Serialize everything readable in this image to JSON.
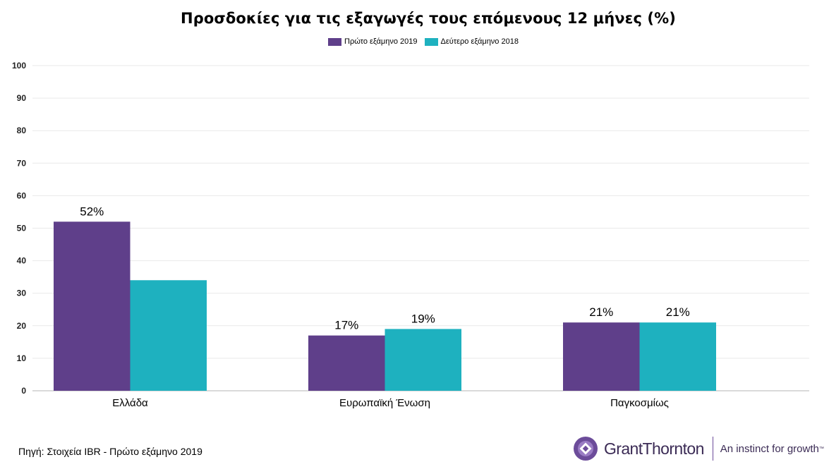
{
  "chart_data": {
    "type": "bar",
    "title": "Προσδοκίες για τις εξαγωγές τους επόμενους 12 μήνες (%)",
    "xlabel": "",
    "ylabel": "",
    "categories": [
      "Ελλάδα",
      "Ευρωπαϊκή Ένωση",
      "Παγκοσμίως"
    ],
    "series": [
      {
        "name": "Πρώτο εξάμηνο 2019",
        "color": "#5f3f8a",
        "values": [
          52,
          17,
          21
        ],
        "labels": [
          "52%",
          "17%",
          "21%"
        ]
      },
      {
        "name": "Δεύτερο εξάμηνο 2018",
        "color": "#1eb1bf",
        "values": [
          34,
          19,
          21
        ],
        "labels": [
          "",
          "19%",
          "21%"
        ]
      }
    ],
    "ylim": [
      0,
      100
    ],
    "yticks": [
      0,
      10,
      20,
      30,
      40,
      50,
      60,
      70,
      80,
      90,
      100
    ],
    "grid": true,
    "legend_position": "top-center"
  },
  "source": "Πηγή: Στοιχεία IBR - Πρώτο εξάμηνο 2019",
  "logo": {
    "name": "GrantThornton",
    "tagline": "An instinct for growth",
    "tm": "™",
    "colors": {
      "purple": "#6c4c9a",
      "dark": "#3b2b55"
    }
  }
}
